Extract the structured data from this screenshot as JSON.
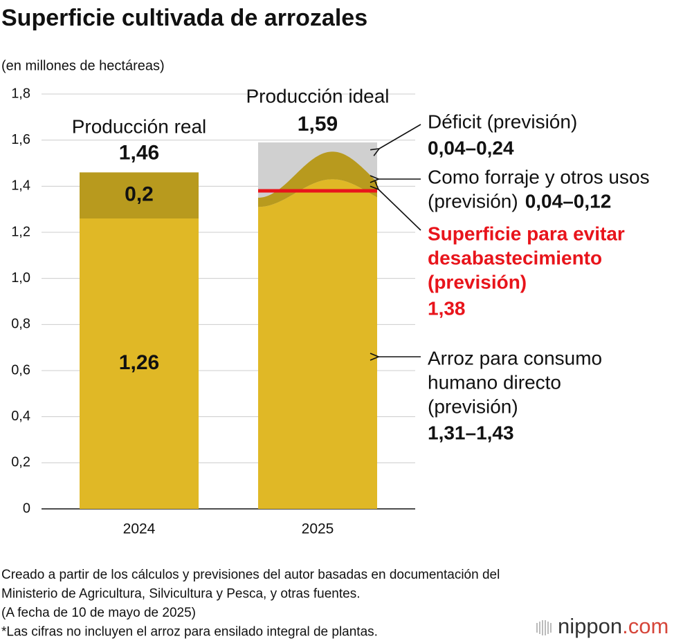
{
  "chart_data": {
    "type": "bar",
    "title": "Superficie cultivada de arrozales",
    "y_label": "(en millones de hectáreas)",
    "categories": [
      "2024",
      "2025"
    ],
    "ylim": [
      0,
      1.8
    ],
    "yticks": [
      0,
      {
        "value": 0.2,
        "label": "0,2"
      },
      {
        "value": 0.4,
        "label": "0,4"
      },
      {
        "value": 0.6,
        "label": "0,6"
      },
      {
        "value": 0.8,
        "label": "0,8"
      },
      {
        "value": 1,
        "label": "1,0"
      },
      {
        "value": 1.2,
        "label": "1,2"
      },
      {
        "value": 1.4,
        "label": "1,4"
      },
      {
        "value": 1.6,
        "label": "1,6"
      },
      {
        "value": 1.8,
        "label": "1,8"
      }
    ],
    "grid": true,
    "real": {
      "label": "Producción real",
      "total": 1.46,
      "total_label": "1,46",
      "segments": [
        {
          "value": 1.26,
          "value_label": "1,26",
          "color": "#e0b826"
        },
        {
          "value": 0.2,
          "value_label": "0,2",
          "color": "#b89a1e"
        }
      ]
    },
    "ideal": {
      "label": "Producción ideal",
      "total": 1.59,
      "total_label": "1,59",
      "color": "#d0d0d0",
      "annotations": [
        {
          "lines": [
            "Déficit (previsión)"
          ],
          "range": [
            0.04,
            0.24
          ],
          "range_label": "0,04–0,24"
        },
        {
          "lines": [
            "Como forraje y otros usos",
            "(previsión)"
          ],
          "range": [
            0.04,
            0.12
          ],
          "range_label": "0,04–0,12",
          "color": "#b89a1e"
        },
        {
          "lines": [
            "Superficie para evitar",
            "desabastecimiento",
            "(previsión)"
          ],
          "value": 1.38,
          "value_label": "1,38",
          "color": "#e8141b"
        },
        {
          "lines": [
            "Arroz para consumo",
            "humano directo",
            "(previsión)"
          ],
          "range": [
            1.31,
            1.43
          ],
          "range_label": "1,31–1,43",
          "color": "#e0b826"
        }
      ]
    }
  },
  "notes": [
    "Creado a partir de los cálculos y previsiones del autor basadas en documentación del",
    "Ministerio de Agricultura, Silvicultura y Pesca, y otras fuentes.",
    "(A fecha de 10 de mayo de 2025)",
    "*Las cifras no incluyen el arroz para ensilado integral de plantas."
  ],
  "logo": [
    "nippon",
    ".com"
  ]
}
